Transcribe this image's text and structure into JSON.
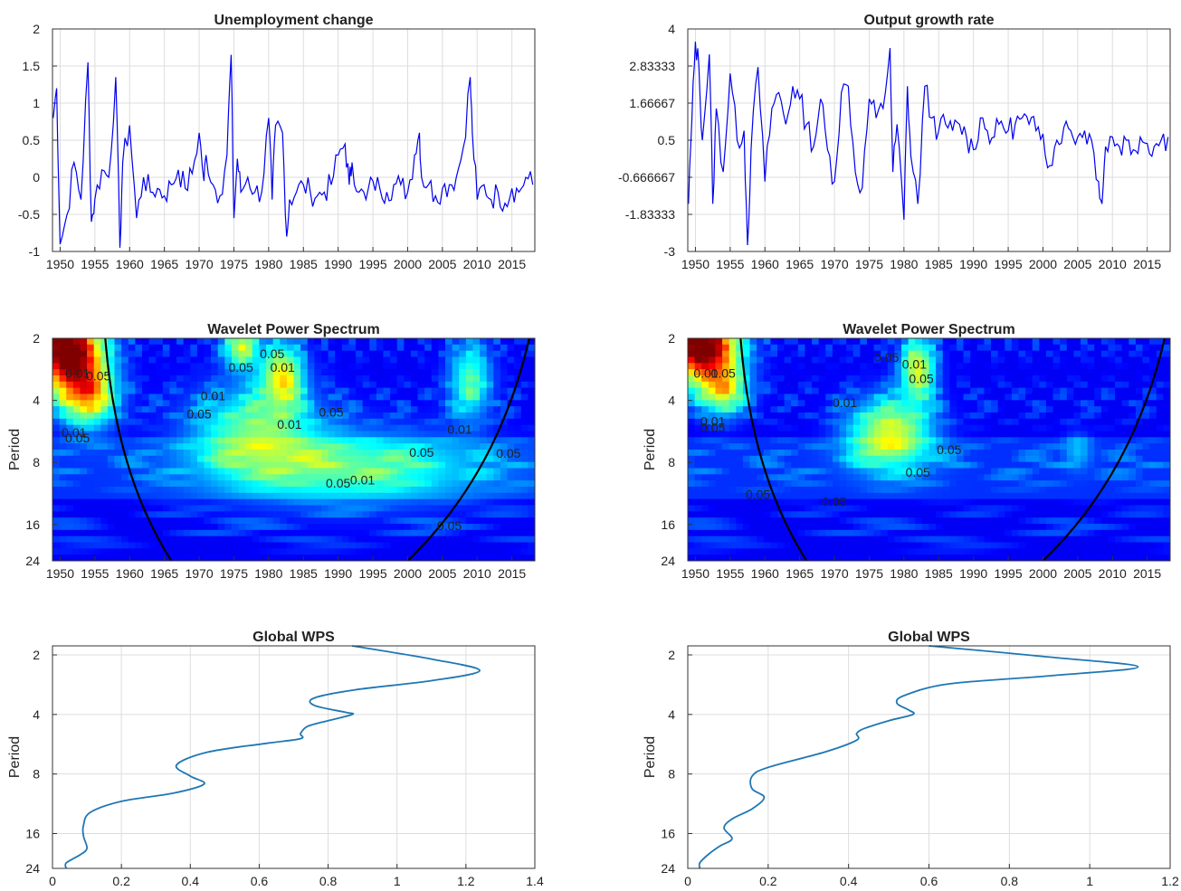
{
  "colors": {
    "series": "#0000ee",
    "gws": "#1f77b4",
    "grid": "#dddddd",
    "axis": "#333333",
    "sig_high": "#000000",
    "sig_low": "#8a8a8a"
  },
  "years": [
    1950,
    1955,
    1960,
    1965,
    1970,
    1975,
    1980,
    1985,
    1990,
    1995,
    2000,
    2005,
    2010,
    2015
  ],
  "chart_data": [
    {
      "id": "unemp-series",
      "type": "line",
      "title": "Unemployment change",
      "xlabel": "",
      "ylabel": "",
      "xlim": [
        1948.9,
        2018.3
      ],
      "ylim": [
        -1,
        2
      ],
      "yticks": [
        "-1",
        "-0.5",
        "0",
        "0.5",
        "1",
        "1.5",
        "2"
      ],
      "x": [
        1949,
        1949.5,
        1950,
        1951,
        1952,
        1953,
        1954,
        1954.5,
        1955,
        1956,
        1957,
        1958,
        1958.6,
        1959,
        1960,
        1961,
        1962,
        1963,
        1964,
        1965,
        1966,
        1967,
        1968,
        1969,
        1970,
        1970.7,
        1971,
        1972,
        1973,
        1974,
        1974.6,
        1975,
        1975.5,
        1976,
        1977,
        1978,
        1979,
        1980,
        1980.5,
        1981,
        1982,
        1982.6,
        1983,
        1984,
        1985,
        1986,
        1987,
        1988,
        1989,
        1990,
        1991,
        1991.6,
        1992,
        1993,
        1994,
        1995,
        1996,
        1997,
        1998,
        1999,
        2000,
        2001,
        2001.7,
        2002,
        2003,
        2004,
        2005,
        2006,
        2007,
        2008,
        2009,
        2009.3,
        2010,
        2011,
        2012,
        2013,
        2014,
        2015,
        2016,
        2017,
        2018
      ],
      "values": [
        0.8,
        1.2,
        -0.9,
        -0.5,
        0.2,
        -0.3,
        1.55,
        -0.6,
        -0.3,
        0.1,
        0.0,
        1.35,
        -0.95,
        0.2,
        0.7,
        -0.55,
        0.0,
        -0.2,
        -0.15,
        -0.25,
        -0.1,
        0.1,
        -0.15,
        0.05,
        0.6,
        -0.05,
        0.3,
        -0.1,
        -0.25,
        0.3,
        1.65,
        -0.55,
        0.25,
        -0.2,
        0.0,
        -0.2,
        -0.2,
        0.8,
        -0.3,
        0.7,
        0.6,
        -0.8,
        -0.3,
        -0.2,
        -0.1,
        -0.2,
        -0.25,
        -0.2,
        -0.1,
        0.3,
        0.45,
        -0.1,
        0.2,
        -0.2,
        -0.3,
        -0.05,
        -0.15,
        -0.2,
        -0.1,
        -0.1,
        -0.2,
        0.3,
        0.6,
        0.0,
        -0.1,
        -0.25,
        -0.15,
        -0.1,
        0.0,
        0.4,
        1.35,
        0.6,
        -0.3,
        -0.1,
        -0.3,
        -0.2,
        -0.35,
        -0.15,
        -0.2,
        0.0,
        -0.1
      ]
    },
    {
      "id": "output-series",
      "type": "line",
      "title": "Output growth rate",
      "xlabel": "",
      "ylabel": "",
      "xlim": [
        1948.9,
        2018.3
      ],
      "ylim": [
        -3,
        4
      ],
      "yticks": [
        "-3",
        "-1.83333",
        "-0.666667",
        "0.5",
        "1.66667",
        "2.83333",
        "4"
      ],
      "x": [
        1949,
        1949.5,
        1950,
        1950.5,
        1951,
        1952,
        1952.5,
        1953,
        1954,
        1955,
        1956,
        1957,
        1957.5,
        1958,
        1959,
        1960,
        1961,
        1962,
        1963,
        1964,
        1965,
        1966,
        1967,
        1968,
        1969,
        1970,
        1971,
        1972,
        1973,
        1974,
        1975,
        1976,
        1977,
        1978,
        1978.4,
        1979,
        1980,
        1980.5,
        1981,
        1982,
        1983,
        1984,
        1985,
        1986,
        1987,
        1988,
        1989,
        1990,
        1991,
        1992,
        1993,
        1994,
        1995,
        1996,
        1997,
        1998,
        1999,
        2000,
        2001,
        2002,
        2003,
        2004,
        2005,
        2006,
        2007,
        2008,
        2008.5,
        2009,
        2010,
        2011,
        2012,
        2013,
        2014,
        2015,
        2016,
        2017,
        2018
      ],
      "values": [
        -1.5,
        1.2,
        3.6,
        2.8,
        0.5,
        3.2,
        -1.5,
        1.5,
        -0.5,
        2.6,
        0.5,
        0.8,
        -2.8,
        0.2,
        2.8,
        -0.8,
        1.5,
        2.0,
        1.0,
        2.2,
        1.8,
        1.0,
        0.3,
        1.8,
        0.2,
        -0.8,
        2.0,
        2.2,
        -0.5,
        -1.0,
        1.8,
        1.2,
        1.5,
        3.4,
        -0.5,
        1.0,
        -2.0,
        2.2,
        0.0,
        -1.5,
        2.2,
        1.2,
        0.8,
        1.0,
        0.8,
        1.0,
        0.6,
        0.2,
        1.2,
        0.8,
        0.6,
        1.1,
        0.8,
        1.0,
        1.2,
        1.0,
        0.8,
        0.7,
        -0.3,
        0.5,
        0.9,
        0.8,
        0.6,
        0.8,
        0.5,
        -0.8,
        -1.5,
        0.3,
        0.6,
        0.3,
        0.5,
        0.2,
        0.6,
        0.4,
        0.3,
        0.5,
        0.6
      ]
    },
    {
      "id": "unemp-wps",
      "type": "heatmap",
      "title": "Wavelet Power Spectrum",
      "xlabel": "",
      "ylabel": "Period",
      "xlim": [
        1948.9,
        2018.3
      ],
      "ylim": [
        2,
        24
      ],
      "yscale": "log2",
      "yticks": [
        2,
        4,
        8,
        16,
        24
      ],
      "colormap": "jet",
      "hotspots": [
        {
          "x": 1951,
          "y": 2.3,
          "sx": 5,
          "sy": 0.6,
          "power": 1.0
        },
        {
          "x": 1954,
          "y": 3.8,
          "sx": 4,
          "sy": 0.5,
          "power": 0.55
        },
        {
          "x": 1976,
          "y": 2.2,
          "sx": 2.5,
          "sy": 0.35,
          "power": 0.45
        },
        {
          "x": 1982,
          "y": 3.0,
          "sx": 3,
          "sy": 0.5,
          "power": 0.5
        },
        {
          "x": 1978,
          "y": 5.5,
          "sx": 9,
          "sy": 0.7,
          "power": 0.35
        },
        {
          "x": 1992,
          "y": 8.5,
          "sx": 18,
          "sy": 0.6,
          "power": 0.3
        },
        {
          "x": 2009,
          "y": 3.2,
          "sx": 3,
          "sy": 0.6,
          "power": 0.35
        }
      ],
      "contour_labels": [
        {
          "text": "0.01",
          "x": 1952.5,
          "y": 3.1,
          "level": "0.01"
        },
        {
          "text": "0.05",
          "x": 1955.5,
          "y": 3.2,
          "level": "0.05"
        },
        {
          "text": "0.01",
          "x": 1952,
          "y": 6.0,
          "level": "0.01"
        },
        {
          "text": "0.05",
          "x": 1952.5,
          "y": 6.4,
          "level": "0.05"
        },
        {
          "text": "0.05",
          "x": 1976,
          "y": 2.9,
          "level": "0.05"
        },
        {
          "text": "0.05",
          "x": 1980.5,
          "y": 2.5,
          "level": "0.05"
        },
        {
          "text": "0.01",
          "x": 1982,
          "y": 2.9,
          "level": "0.01"
        },
        {
          "text": "0.01",
          "x": 1972,
          "y": 4.0,
          "level": "0.01"
        },
        {
          "text": "0.05",
          "x": 1970,
          "y": 4.9,
          "level": "0.05"
        },
        {
          "text": "0.01",
          "x": 1983,
          "y": 5.5,
          "level": "0.01"
        },
        {
          "text": "0.05",
          "x": 1989,
          "y": 4.8,
          "level": "0.05"
        },
        {
          "text": "0.05",
          "x": 2002,
          "y": 7.5,
          "level": "0.05"
        },
        {
          "text": "0.01",
          "x": 2007.5,
          "y": 5.8,
          "level": "0.01"
        },
        {
          "text": "0.05",
          "x": 2014.5,
          "y": 7.6,
          "level": "0.05"
        },
        {
          "text": "0.05",
          "x": 1990,
          "y": 10.6,
          "level": "0.05"
        },
        {
          "text": "0.01",
          "x": 1993.5,
          "y": 10.2,
          "level": "0.01"
        },
        {
          "text": "0.05",
          "x": 2006,
          "y": 17.0,
          "level": "0.05"
        }
      ]
    },
    {
      "id": "output-wps",
      "type": "heatmap",
      "title": "Wavelet Power Spectrum",
      "xlabel": "",
      "ylabel": "Period",
      "xlim": [
        1948.9,
        2018.3
      ],
      "ylim": [
        2,
        24
      ],
      "yscale": "log2",
      "yticks": [
        2,
        4,
        8,
        16,
        24
      ],
      "colormap": "jet",
      "hotspots": [
        {
          "x": 1951,
          "y": 2.2,
          "sx": 5,
          "sy": 0.55,
          "power": 1.0
        },
        {
          "x": 1954,
          "y": 3.6,
          "sx": 3.5,
          "sy": 0.4,
          "power": 0.45
        },
        {
          "x": 1982,
          "y": 2.8,
          "sx": 2.5,
          "sy": 0.5,
          "power": 0.5
        },
        {
          "x": 1978,
          "y": 5.8,
          "sx": 6,
          "sy": 0.55,
          "power": 0.5
        },
        {
          "x": 2005,
          "y": 7.0,
          "sx": 2,
          "sy": 0.3,
          "power": 0.15
        }
      ],
      "contour_labels": [
        {
          "text": "0.01",
          "x": 1951.5,
          "y": 3.1,
          "level": "0.01"
        },
        {
          "text": "0.05",
          "x": 1954,
          "y": 3.1,
          "level": "0.05"
        },
        {
          "text": "0.01",
          "x": 1952.5,
          "y": 5.3,
          "level": "0.01"
        },
        {
          "text": "0.05",
          "x": 1952.5,
          "y": 5.7,
          "level": "0.05"
        },
        {
          "text": "0.05",
          "x": 1977.5,
          "y": 2.6,
          "level": "0.05"
        },
        {
          "text": "0.01",
          "x": 1981.5,
          "y": 2.8,
          "level": "0.01"
        },
        {
          "text": "0.05",
          "x": 1982.5,
          "y": 3.3,
          "level": "0.05"
        },
        {
          "text": "0.01",
          "x": 1971.5,
          "y": 4.3,
          "level": "0.01"
        },
        {
          "text": "0.05",
          "x": 1986.5,
          "y": 7.3,
          "level": "0.05"
        },
        {
          "text": "0.05",
          "x": 1982,
          "y": 9.4,
          "level": "0.05"
        },
        {
          "text": "0.05",
          "x": 1959,
          "y": 12.0,
          "level": "0.05"
        },
        {
          "text": "0.05",
          "x": 1970,
          "y": 13.0,
          "level": "0.05"
        }
      ]
    },
    {
      "id": "unemp-gws",
      "type": "line",
      "title": "Global WPS",
      "xlabel": "",
      "ylabel": "Period",
      "xlim": [
        0,
        1.4
      ],
      "ylim": [
        1.8,
        24
      ],
      "yscale": "log2",
      "xticks": [
        "0",
        "0.2",
        "0.4",
        "0.6",
        "0.8",
        "1",
        "1.2",
        "1.4"
      ],
      "yticks": [
        2,
        4,
        8,
        16,
        24
      ],
      "x": [
        0.87,
        1.1,
        1.24,
        1.1,
        0.88,
        0.76,
        0.76,
        0.85,
        0.87,
        0.8,
        0.74,
        0.72,
        0.72,
        0.62,
        0.45,
        0.36,
        0.4,
        0.44,
        0.35,
        0.2,
        0.11,
        0.09,
        0.09,
        0.1,
        0.08,
        0.04,
        0.04
      ],
      "y": [
        1.8,
        2.1,
        2.4,
        2.7,
        3.0,
        3.3,
        3.6,
        3.9,
        4.0,
        4.3,
        4.6,
        5.0,
        5.3,
        5.6,
        6.2,
        7.2,
        8.2,
        9.0,
        10.0,
        11.0,
        12.5,
        14.5,
        16.5,
        19.0,
        20.5,
        22.5,
        24.0
      ]
    },
    {
      "id": "output-gws",
      "type": "line",
      "title": "Global WPS",
      "xlabel": "",
      "ylabel": "Period",
      "xlim": [
        0,
        1.2
      ],
      "ylim": [
        1.8,
        24
      ],
      "yscale": "log2",
      "xticks": [
        "0",
        "0.2",
        "0.4",
        "0.6",
        "0.8",
        "1",
        "1.2"
      ],
      "yticks": [
        2,
        4,
        8,
        16,
        24
      ],
      "x": [
        0.6,
        0.9,
        1.12,
        0.9,
        0.65,
        0.54,
        0.52,
        0.55,
        0.56,
        0.5,
        0.44,
        0.42,
        0.42,
        0.34,
        0.2,
        0.16,
        0.16,
        0.19,
        0.16,
        0.11,
        0.09,
        0.11,
        0.08,
        0.05,
        0.03,
        0.03
      ],
      "y": [
        1.8,
        2.05,
        2.3,
        2.55,
        2.8,
        3.2,
        3.5,
        3.8,
        4.0,
        4.3,
        4.7,
        5.0,
        5.4,
        6.2,
        7.4,
        8.2,
        9.5,
        10.5,
        12.0,
        13.5,
        15.0,
        17.0,
        18.5,
        20.5,
        22.5,
        24.0
      ]
    }
  ]
}
